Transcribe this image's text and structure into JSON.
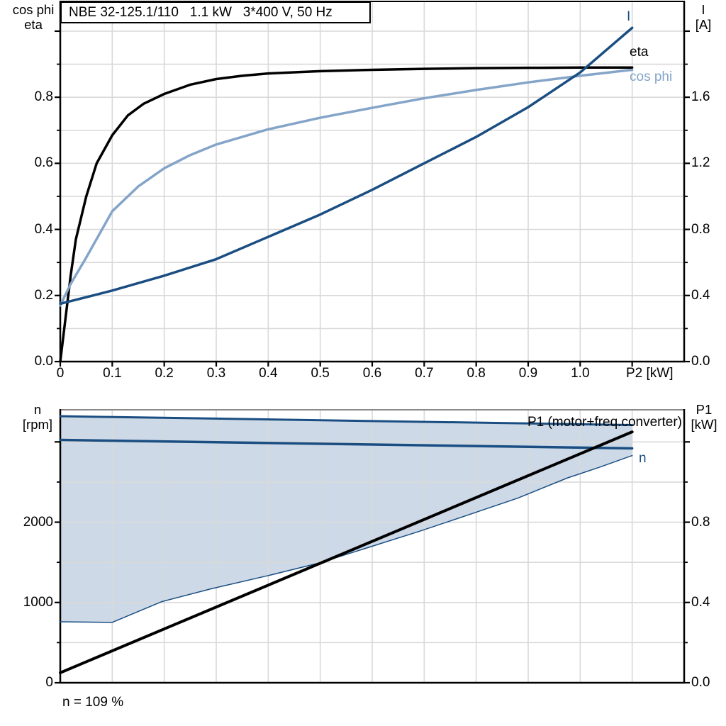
{
  "page": {
    "background": "#ffffff"
  },
  "colors": {
    "dark_blue": "#1a4e82",
    "light_blue": "#84a4c8",
    "area_fill": "#cdd9e6",
    "gridline": "#d9d9d9",
    "axis": "#000000",
    "top_border_gray": "#8a8a8a"
  },
  "chart_data": [
    {
      "type": "line",
      "title": "NBE 32-125.1/110   1.1 kW   3*400 V, 50 Hz",
      "xlabel": "P2 [kW]",
      "x_axis": {
        "min": 0,
        "max": 1.2,
        "tick_step": 0.1,
        "grid_step": 0.1,
        "tick_labels": [
          "0",
          "0.1",
          "0.2",
          "0.3",
          "0.4",
          "0.5",
          "0.6",
          "0.7",
          "0.8",
          "0.9",
          "1.0"
        ]
      },
      "left_axis": {
        "label": [
          "cos phi",
          "eta"
        ],
        "min": 0,
        "max": 1.09,
        "major_step": 0.2,
        "minor_step": 0.1,
        "tick_labels": [
          "0.0",
          "0.2",
          "0.4",
          "0.6",
          "0.8"
        ]
      },
      "right_axis": {
        "label": [
          "I",
          "[A]"
        ],
        "min": 0,
        "max": 2.18,
        "major_step": 0.4,
        "minor_step": 0.2,
        "tick_labels": [
          "0.0",
          "0.4",
          "0.8",
          "1.2",
          "1.6"
        ]
      },
      "grid": true,
      "legend_position": "end-of-curve",
      "series": [
        {
          "name": "eta",
          "axis": "left",
          "color": "#000000",
          "width": 3.5,
          "x": [
            0,
            0.01,
            0.02,
            0.03,
            0.05,
            0.07,
            0.1,
            0.13,
            0.16,
            0.2,
            0.25,
            0.3,
            0.35,
            0.4,
            0.5,
            0.6,
            0.7,
            0.8,
            0.9,
            1.0,
            1.1
          ],
          "y": [
            0,
            0.13,
            0.26,
            0.37,
            0.5,
            0.6,
            0.685,
            0.745,
            0.78,
            0.81,
            0.838,
            0.855,
            0.865,
            0.872,
            0.879,
            0.883,
            0.886,
            0.888,
            0.889,
            0.89,
            0.89
          ]
        },
        {
          "name": "cos phi",
          "axis": "left",
          "color": "#84a4c8",
          "width": 3.5,
          "x": [
            0,
            0.02,
            0.05,
            0.1,
            0.15,
            0.2,
            0.25,
            0.3,
            0.4,
            0.5,
            0.6,
            0.7,
            0.8,
            0.9,
            1.0,
            1.1
          ],
          "y": [
            0.17,
            0.235,
            0.315,
            0.455,
            0.53,
            0.585,
            0.625,
            0.657,
            0.703,
            0.738,
            0.768,
            0.797,
            0.822,
            0.845,
            0.865,
            0.883
          ]
        },
        {
          "name": "I",
          "axis": "right",
          "color": "#1a4e82",
          "width": 3.5,
          "x": [
            0,
            0.1,
            0.2,
            0.3,
            0.4,
            0.5,
            0.6,
            0.7,
            0.8,
            0.9,
            1.0,
            1.1
          ],
          "y": [
            0.35,
            0.43,
            0.52,
            0.62,
            0.755,
            0.89,
            1.04,
            1.2,
            1.36,
            1.54,
            1.75,
            2.02
          ]
        }
      ]
    },
    {
      "type": "line+area",
      "x_axis": {
        "min": 0,
        "max": 1.2,
        "grid_step": 0.1
      },
      "left_axis": {
        "label": [
          "n",
          "[rpm]"
        ],
        "min": 0,
        "max": 3400,
        "major_step": 1000,
        "minor_step": 500,
        "tick_labels": [
          "0",
          "1000",
          "2000"
        ]
      },
      "right_axis": {
        "label": [
          "P1",
          "[kW]"
        ],
        "min": 0,
        "max": 1.36,
        "major_step": 0.4,
        "minor_step": 0.2,
        "tick_labels": [
          "0.0",
          "0.4",
          "0.8"
        ]
      },
      "grid": true,
      "area": {
        "name": "speed-control-range",
        "fill": "#cdd9e6",
        "upper": {
          "x": [
            0,
            1.1
          ],
          "y": [
            3320,
            3210
          ]
        },
        "lower": {
          "x": [
            0,
            0.1,
            0.195,
            0.29,
            0.4,
            0.5,
            0.59,
            0.69,
            0.78,
            0.88,
            0.975,
            1.035,
            1.1
          ],
          "y": [
            760,
            752,
            1010,
            1170,
            1335,
            1495,
            1680,
            1885,
            2080,
            2300,
            2550,
            2680,
            2830
          ]
        }
      },
      "series": [
        {
          "name": "n-max-boundary",
          "axis": "left",
          "color": "#1a4e82",
          "width": 3,
          "x": [
            0,
            1.1
          ],
          "y": [
            3320,
            3210
          ]
        },
        {
          "name": "n",
          "axis": "left",
          "color": "#1a4e82",
          "width": 3.5,
          "x": [
            0,
            1.1
          ],
          "y": [
            3025,
            2920
          ]
        },
        {
          "name": "n-min-boundary",
          "axis": "left",
          "color": "#1a4e82",
          "width": 1.5,
          "x": [
            0,
            0.1,
            0.195,
            0.29,
            0.4,
            0.5,
            0.59,
            0.69,
            0.78,
            0.88,
            0.975,
            1.035,
            1.1
          ],
          "y": [
            760,
            752,
            1010,
            1170,
            1335,
            1495,
            1680,
            1885,
            2080,
            2300,
            2550,
            2680,
            2830
          ]
        },
        {
          "name": "P1 (motor+freq.converter)",
          "axis": "right",
          "color": "#000000",
          "width": 4,
          "x": [
            0,
            1.1
          ],
          "y": [
            0.05,
            1.25
          ]
        }
      ],
      "footer": "n = 109 %"
    }
  ]
}
